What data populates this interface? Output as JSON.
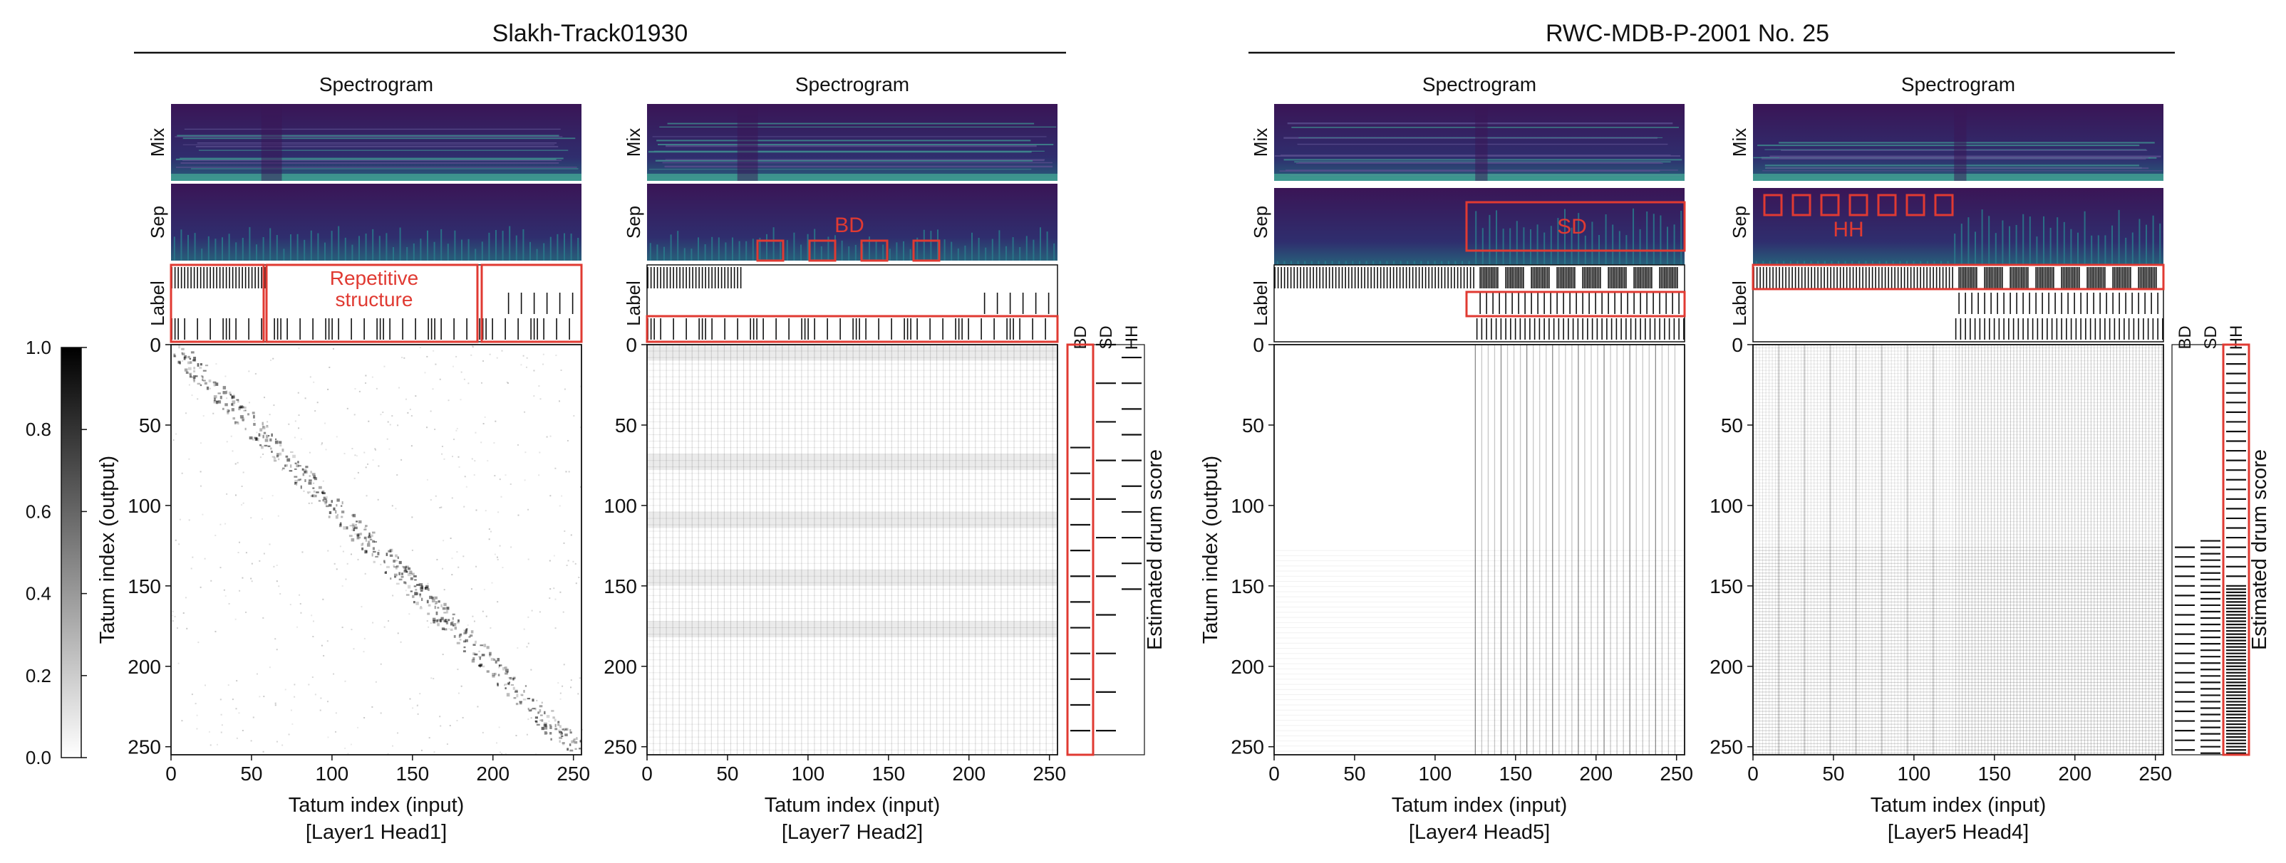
{
  "sections": [
    {
      "title": "Slakh-Track01930"
    },
    {
      "title": "RWC-MDB-P-2001 No. 25"
    }
  ],
  "colorbar": {
    "ticks": [
      "1.0",
      "0.8",
      "0.6",
      "0.4",
      "0.2",
      "0.0"
    ]
  },
  "labels": {
    "spectrogram": "Spectrogram",
    "mix": "Mix",
    "sep": "Sep",
    "label": "Label",
    "xlabel": "Tatum index (input)",
    "ylabel": "Tatum index (output)",
    "right_label": "Estimated drum score",
    "drums": [
      "BD",
      "SD",
      "HH"
    ]
  },
  "annotations": {
    "repetitive_1": "Repetitive",
    "repetitive_2": "structure",
    "bd": "BD",
    "sd": "SD",
    "hh": "HH"
  },
  "ticks": [
    "0",
    "50",
    "100",
    "150",
    "200",
    "250"
  ],
  "panels": [
    {
      "caption": "[Layer1 Head1]"
    },
    {
      "caption": "[Layer7 Head2]"
    },
    {
      "caption": "[Layer4 Head5]"
    },
    {
      "caption": "[Layer5 Head4]"
    }
  ],
  "chart_data": {
    "type": "heatmap",
    "axis_range": [
      0,
      255
    ],
    "colorbar_range": [
      0.0,
      1.0
    ],
    "panels": [
      {
        "title": "Slakh-Track01930",
        "caption": "[Layer1 Head1]",
        "pattern": "diagonal"
      },
      {
        "title": "Slakh-Track01930",
        "caption": "[Layer7 Head2]",
        "pattern": "periodic-grid"
      },
      {
        "title": "RWC-MDB-P-2001 No. 25",
        "caption": "[Layer4 Head5]",
        "pattern": "vertical-lines-after-125"
      },
      {
        "title": "RWC-MDB-P-2001 No. 25",
        "caption": "[Layer5 Head4]",
        "pattern": "dense-grid"
      }
    ]
  },
  "colors": {
    "annotation": "#e03a32",
    "spec_bg": "#3b1a5a",
    "spec_mid": "#2a7a8c",
    "spec_hi": "#4fc7a0"
  }
}
